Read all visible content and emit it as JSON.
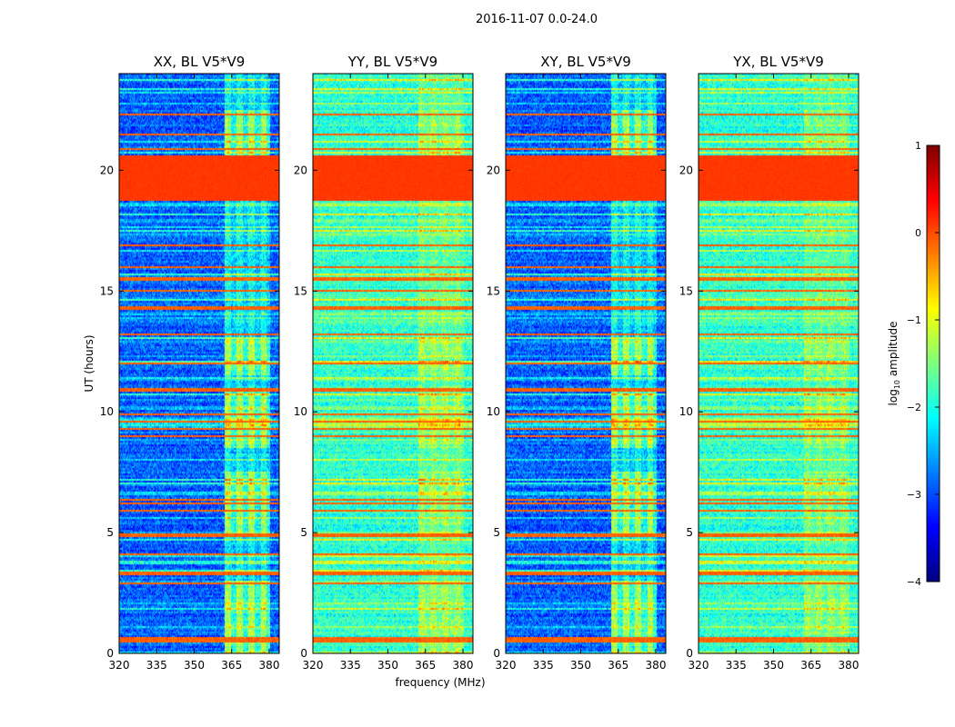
{
  "suptitle": "2016-11-07 0.0-24.0",
  "chart_data": {
    "type": "heatmap",
    "title": "2016-11-07 0.0-24.0",
    "xlabel": "frequency (MHz)",
    "ylabel": "UT (hours)",
    "xlim": [
      320,
      384
    ],
    "ylim": [
      0,
      24
    ],
    "xticks": [
      "320",
      "335",
      "350",
      "365",
      "380"
    ],
    "yticks": [
      "0",
      "5",
      "10",
      "15",
      "20"
    ],
    "colorbar": {
      "label": "log10 amplitude",
      "label_main": "log",
      "label_sub": "10",
      "label_rest": " amplitude",
      "range": [
        -4,
        1
      ],
      "ticks": [
        "1",
        "0",
        "−1",
        "−2",
        "−3",
        "−4"
      ],
      "colormap": "jet"
    },
    "panels": [
      {
        "title": "XX, BL V5*V9",
        "base_level": -2.9,
        "band_boost": 1.6
      },
      {
        "title": "YY, BL V5*V9",
        "base_level": -1.9,
        "band_boost": 0.6
      },
      {
        "title": "XY, BL V5*V9",
        "base_level": -2.9,
        "band_boost": 1.6
      },
      {
        "title": "YX, BL V5*V9",
        "base_level": -1.9,
        "band_boost": 0.5
      }
    ],
    "strong_rfi_hours": [
      [
        18.7,
        20.6
      ]
    ],
    "rfi_line_hours": [
      0.5,
      0.6,
      2.9,
      3.3,
      4.1,
      4.9,
      5.9,
      6.2,
      6.35,
      9.0,
      9.3,
      9.6,
      9.9,
      10.9,
      12.0,
      13.2,
      14.3,
      15.0,
      15.5,
      16.0,
      16.9,
      20.9,
      21.5,
      22.3
    ],
    "elevated_band_mhz": [
      362,
      380
    ],
    "elevated_band_hours": [
      [
        0,
        3
      ],
      [
        5,
        7.5
      ],
      [
        8.5,
        11
      ],
      [
        11.5,
        13
      ],
      [
        20.5,
        22.5
      ]
    ]
  }
}
